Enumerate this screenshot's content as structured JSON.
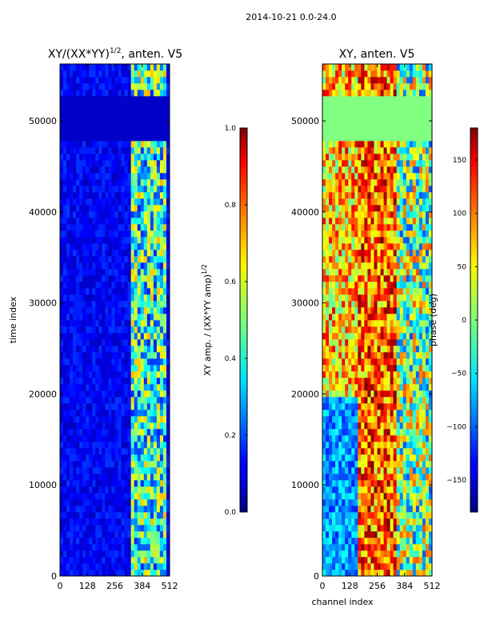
{
  "suptitle": "2014-10-21 0.0-24.0",
  "chart_data": [
    {
      "type": "heatmap",
      "title": "XY/(XX*YY)^1/2, anten. V5",
      "title_main": "XY/(XX*YY)",
      "title_exp": "1/2",
      "title_tail": ", anten. V5",
      "xlabel": "",
      "ylabel": "time index",
      "xlim": [
        0,
        512
      ],
      "ylim": [
        0,
        56250
      ],
      "xticks": [
        0,
        128,
        256,
        384,
        512
      ],
      "yticks": [
        0,
        10000,
        20000,
        30000,
        40000,
        50000
      ],
      "colormap": "jet",
      "colorbar": {
        "label": "XY amp. / (XX*YY amp)^1/2",
        "label_main": "XY amp. / (XX*YY amp)",
        "label_exp": "1/2",
        "range": [
          0.0,
          1.0
        ],
        "ticks": [
          "0.0",
          "0.2",
          "0.4",
          "0.6",
          "0.8",
          "1.0"
        ]
      }
    },
    {
      "type": "heatmap",
      "title": "XY, anten. V5",
      "xlabel": "channel index",
      "ylabel": "",
      "xlim": [
        0,
        512
      ],
      "ylim": [
        0,
        56250
      ],
      "xticks": [
        0,
        128,
        256,
        384,
        512
      ],
      "yticks": [
        0,
        10000,
        20000,
        30000,
        40000,
        50000
      ],
      "colormap": "jet",
      "colorbar": {
        "label": "phase (deg)",
        "range": [
          -180,
          180
        ],
        "ticks": [
          "150",
          "100",
          "50",
          "0",
          "−50",
          "−100",
          "−150"
        ]
      }
    }
  ]
}
